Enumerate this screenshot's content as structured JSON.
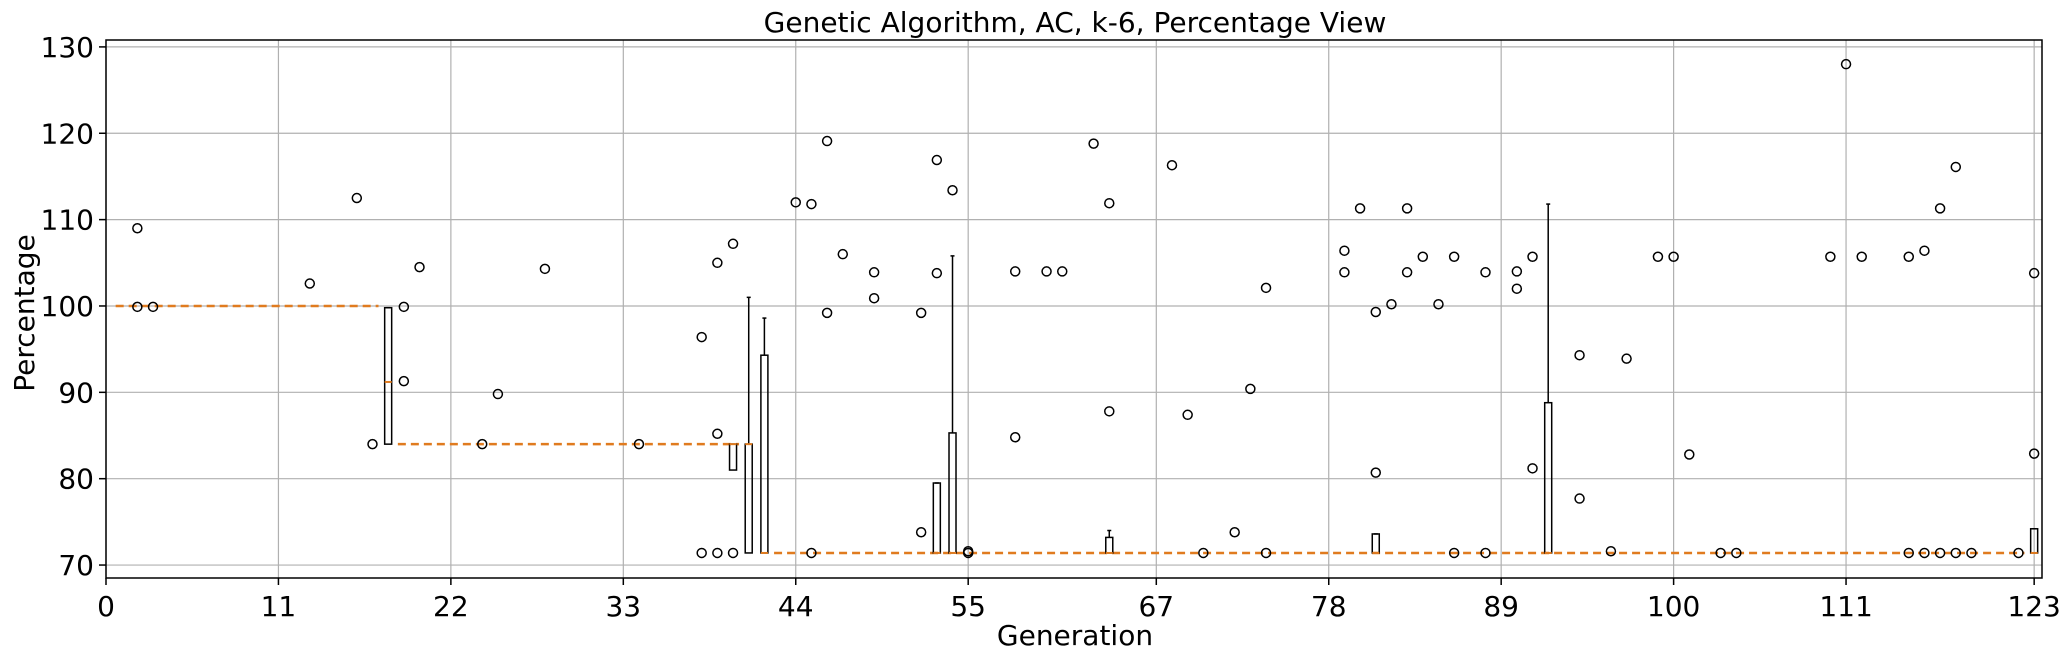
{
  "chart_data": {
    "type": "boxplot",
    "title": "Genetic Algorithm, AC, k-6, Percentage View",
    "xlabel": "Generation",
    "ylabel": "Percentage",
    "xlim": [
      0,
      123.5
    ],
    "ylim": [
      68.5,
      130.8
    ],
    "xticks": [
      0,
      11,
      22,
      33,
      44,
      55,
      67,
      78,
      89,
      100,
      111,
      123
    ],
    "yticks": [
      70,
      80,
      90,
      100,
      110,
      120,
      130
    ],
    "grid": true,
    "colors": {
      "box": "#000000",
      "median": "#e07b1f",
      "outlier": "#000000",
      "grid": "#b0b0b0"
    },
    "boxes": [
      {
        "x": 18,
        "q1": 84.0,
        "median": 91.2,
        "q3": 99.8,
        "whislo": 84.0,
        "whishi": 99.8
      },
      {
        "x": 40,
        "q1": 81.0,
        "median": 84.0,
        "q3": 84.0,
        "whislo": 81.0,
        "whishi": 84.0
      },
      {
        "x": 41,
        "q1": 71.4,
        "median": 84.0,
        "q3": 84.0,
        "whislo": 71.4,
        "whishi": 101.0
      },
      {
        "x": 42,
        "q1": 71.4,
        "median": 71.4,
        "q3": 94.3,
        "whislo": 71.4,
        "whishi": 98.6
      },
      {
        "x": 53,
        "q1": 71.4,
        "median": 71.4,
        "q3": 79.5,
        "whislo": 71.4,
        "whishi": 79.5
      },
      {
        "x": 54,
        "q1": 71.4,
        "median": 71.4,
        "q3": 85.3,
        "whislo": 71.4,
        "whishi": 105.8
      },
      {
        "x": 64,
        "q1": 71.4,
        "median": 71.4,
        "q3": 73.2,
        "whislo": 71.4,
        "whishi": 74.0
      },
      {
        "x": 81,
        "q1": 71.4,
        "median": 71.4,
        "q3": 73.6,
        "whislo": 71.4,
        "whishi": 73.6
      },
      {
        "x": 92,
        "q1": 71.4,
        "median": 71.4,
        "q3": 88.8,
        "whislo": 71.4,
        "whishi": 111.8
      },
      {
        "x": 123,
        "q1": 71.4,
        "median": 71.4,
        "q3": 74.2,
        "whislo": 71.4,
        "whishi": 74.2
      }
    ],
    "median_segments": [
      {
        "x_start": 1,
        "x_end": 17,
        "value": 100.0
      },
      {
        "x_start": 19,
        "x_end": 40,
        "value": 84.0
      },
      {
        "x_start": 43,
        "x_end": 122,
        "value": 71.4
      }
    ],
    "outliers": [
      [
        2,
        109.0
      ],
      [
        2,
        99.9
      ],
      [
        3,
        99.9
      ],
      [
        13,
        102.6
      ],
      [
        16,
        112.5
      ],
      [
        17,
        84.0
      ],
      [
        19,
        99.9
      ],
      [
        19,
        91.3
      ],
      [
        20,
        104.5
      ],
      [
        24,
        84.0
      ],
      [
        25,
        89.8
      ],
      [
        28,
        104.3
      ],
      [
        34,
        84.0
      ],
      [
        38,
        96.4
      ],
      [
        38,
        71.4
      ],
      [
        39,
        105.0
      ],
      [
        39,
        85.2
      ],
      [
        39,
        71.4
      ],
      [
        40,
        107.2
      ],
      [
        40,
        71.4
      ],
      [
        44,
        112.0
      ],
      [
        45,
        111.8
      ],
      [
        45,
        71.4
      ],
      [
        46,
        119.1
      ],
      [
        46,
        99.2
      ],
      [
        47,
        106.0
      ],
      [
        49,
        103.9
      ],
      [
        49,
        100.9
      ],
      [
        52,
        99.2
      ],
      [
        52,
        73.8
      ],
      [
        53,
        116.9
      ],
      [
        53,
        103.8
      ],
      [
        54,
        113.4
      ],
      [
        55,
        71.4
      ],
      [
        55,
        71.6
      ],
      [
        58,
        104.0
      ],
      [
        58,
        84.8
      ],
      [
        60,
        104.0
      ],
      [
        61,
        104.0
      ],
      [
        63,
        118.8
      ],
      [
        64,
        111.9
      ],
      [
        64,
        87.8
      ],
      [
        68,
        116.3
      ],
      [
        69,
        87.4
      ],
      [
        70,
        71.4
      ],
      [
        72,
        73.8
      ],
      [
        73,
        90.4
      ],
      [
        74,
        102.1
      ],
      [
        74,
        71.4
      ],
      [
        79,
        106.4
      ],
      [
        79,
        103.9
      ],
      [
        80,
        111.3
      ],
      [
        81,
        99.3
      ],
      [
        81,
        80.7
      ],
      [
        82,
        100.2
      ],
      [
        83,
        111.3
      ],
      [
        83,
        103.9
      ],
      [
        84,
        105.7
      ],
      [
        85,
        100.2
      ],
      [
        86,
        105.7
      ],
      [
        86,
        71.4
      ],
      [
        88,
        103.9
      ],
      [
        88,
        71.4
      ],
      [
        90,
        104.0
      ],
      [
        90,
        102.0
      ],
      [
        91,
        105.7
      ],
      [
        91,
        81.2
      ],
      [
        94,
        94.3
      ],
      [
        94,
        77.7
      ],
      [
        96,
        71.6
      ],
      [
        97,
        93.9
      ],
      [
        99,
        105.7
      ],
      [
        100,
        105.7
      ],
      [
        101,
        82.8
      ],
      [
        103,
        71.4
      ],
      [
        104,
        71.4
      ],
      [
        110,
        105.7
      ],
      [
        111,
        128.0
      ],
      [
        112,
        105.7
      ],
      [
        115,
        105.7
      ],
      [
        115,
        71.4
      ],
      [
        116,
        106.4
      ],
      [
        116,
        71.4
      ],
      [
        117,
        111.3
      ],
      [
        117,
        71.4
      ],
      [
        118,
        116.1
      ],
      [
        118,
        71.4
      ],
      [
        119,
        71.4
      ],
      [
        122,
        71.4
      ],
      [
        123,
        103.8
      ],
      [
        123,
        82.9
      ]
    ]
  }
}
